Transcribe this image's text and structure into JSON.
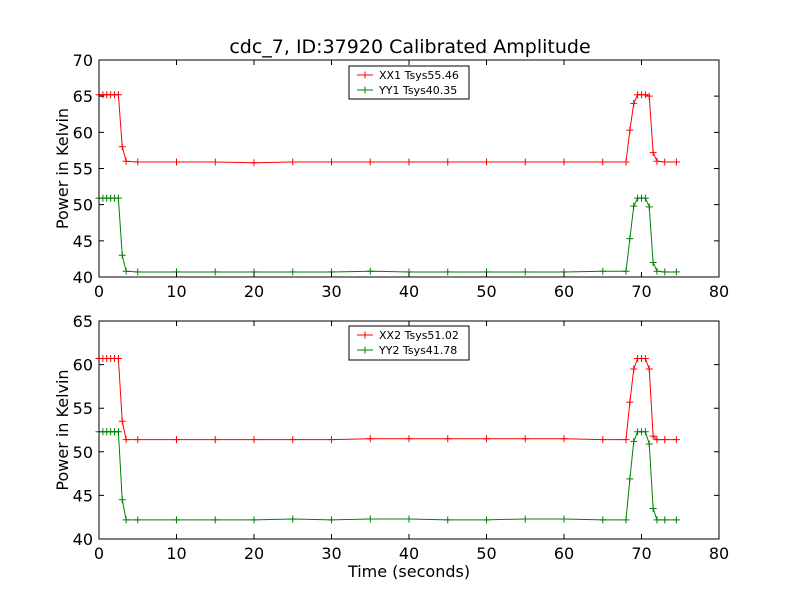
{
  "chart_data": [
    {
      "type": "line",
      "title": "cdc_7, ID:37920 Calibrated Amplitude",
      "xlabel": "",
      "ylabel": "Power in Kelvin",
      "xlim": [
        0,
        80
      ],
      "ylim": [
        40,
        70
      ],
      "xticks": [
        0,
        10,
        20,
        30,
        40,
        50,
        60,
        70,
        80
      ],
      "yticks": [
        40,
        45,
        50,
        55,
        60,
        65,
        70
      ],
      "legend_position": "top-center",
      "marker": "plus",
      "grid": false,
      "series": [
        {
          "name": "XX1 Tsys55.46",
          "color": "#ff0000",
          "x": [
            0.0,
            0.5,
            1.0,
            1.5,
            2.0,
            2.5,
            3.0,
            3.5,
            5.0,
            10.0,
            15.0,
            20.0,
            25.0,
            30.0,
            35.0,
            40.0,
            45.0,
            50.0,
            55.0,
            60.0,
            65.0,
            68.0,
            68.5,
            69.0,
            69.5,
            70.0,
            70.5,
            71.0,
            71.5,
            72.0,
            73.0,
            74.5
          ],
          "y": [
            65.2,
            65.2,
            65.2,
            65.2,
            65.2,
            65.2,
            58.0,
            56.0,
            55.9,
            55.9,
            55.9,
            55.8,
            55.9,
            55.9,
            55.9,
            55.9,
            55.9,
            55.9,
            55.9,
            55.9,
            55.9,
            55.9,
            60.3,
            64.0,
            65.2,
            65.2,
            65.2,
            65.0,
            57.2,
            56.0,
            55.9,
            55.9
          ]
        },
        {
          "name": "YY1 Tsys40.35",
          "color": "#008000",
          "x": [
            0.0,
            0.5,
            1.0,
            1.5,
            2.0,
            2.5,
            3.0,
            3.5,
            5.0,
            10.0,
            15.0,
            20.0,
            25.0,
            30.0,
            35.0,
            40.0,
            45.0,
            50.0,
            55.0,
            60.0,
            65.0,
            68.0,
            68.5,
            69.0,
            69.5,
            70.0,
            70.5,
            71.0,
            71.5,
            72.0,
            73.0,
            74.5
          ],
          "y": [
            50.9,
            50.9,
            50.9,
            50.9,
            50.9,
            50.9,
            43.0,
            40.8,
            40.7,
            40.7,
            40.7,
            40.7,
            40.7,
            40.7,
            40.8,
            40.7,
            40.7,
            40.7,
            40.7,
            40.7,
            40.8,
            40.8,
            45.3,
            49.8,
            50.9,
            50.9,
            50.9,
            49.7,
            42.0,
            40.8,
            40.7,
            40.7
          ]
        }
      ]
    },
    {
      "type": "line",
      "title": "",
      "xlabel": "Time (seconds)",
      "ylabel": "Power in Kelvin",
      "xlim": [
        0,
        80
      ],
      "ylim": [
        40,
        65
      ],
      "xticks": [
        0,
        10,
        20,
        30,
        40,
        50,
        60,
        70,
        80
      ],
      "yticks": [
        40,
        45,
        50,
        55,
        60,
        65
      ],
      "legend_position": "top-center",
      "marker": "plus",
      "grid": false,
      "series": [
        {
          "name": "XX2 Tsys51.02",
          "color": "#ff0000",
          "x": [
            0.0,
            0.5,
            1.0,
            1.5,
            2.0,
            2.5,
            3.0,
            3.5,
            5.0,
            10.0,
            15.0,
            20.0,
            25.0,
            30.0,
            35.0,
            40.0,
            45.0,
            50.0,
            55.0,
            60.0,
            65.0,
            68.0,
            68.5,
            69.0,
            69.5,
            70.0,
            70.5,
            71.0,
            71.5,
            72.0,
            73.0,
            74.5
          ],
          "y": [
            60.7,
            60.7,
            60.7,
            60.7,
            60.7,
            60.7,
            53.5,
            51.4,
            51.4,
            51.4,
            51.4,
            51.4,
            51.4,
            51.4,
            51.5,
            51.5,
            51.5,
            51.5,
            51.5,
            51.5,
            51.4,
            51.4,
            55.7,
            59.5,
            60.7,
            60.7,
            60.7,
            59.5,
            51.8,
            51.4,
            51.4,
            51.4
          ]
        },
        {
          "name": "YY2 Tsys41.78",
          "color": "#008000",
          "x": [
            0.0,
            0.5,
            1.0,
            1.5,
            2.0,
            2.5,
            3.0,
            3.5,
            5.0,
            10.0,
            15.0,
            20.0,
            25.0,
            30.0,
            35.0,
            40.0,
            45.0,
            50.0,
            55.0,
            60.0,
            65.0,
            68.0,
            68.5,
            69.0,
            69.5,
            70.0,
            70.5,
            71.0,
            71.5,
            72.0,
            73.0,
            74.5
          ],
          "y": [
            52.3,
            52.3,
            52.3,
            52.3,
            52.3,
            52.3,
            44.5,
            42.2,
            42.2,
            42.2,
            42.2,
            42.2,
            42.3,
            42.2,
            42.3,
            42.3,
            42.2,
            42.2,
            42.3,
            42.3,
            42.2,
            42.2,
            46.9,
            51.2,
            52.3,
            52.3,
            52.3,
            50.9,
            43.5,
            42.2,
            42.2,
            42.2
          ]
        }
      ]
    }
  ]
}
